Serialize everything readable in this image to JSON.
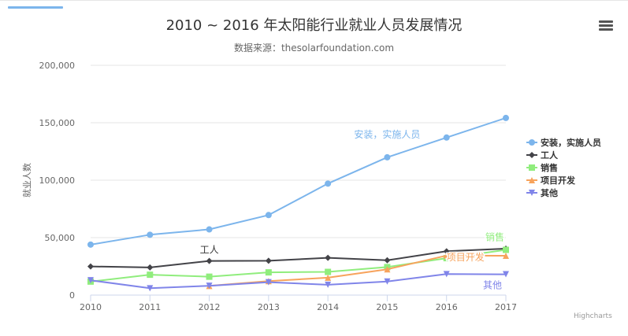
{
  "header": {
    "title": "2010 ~ 2016 年太阳能行业就业人员发展情况",
    "subtitle": "数据来源：thesolarfoundation.com",
    "credits": "Highcharts"
  },
  "chart_data": {
    "type": "line",
    "title": "2010 ~ 2016 年太阳能行业就业人员发展情况",
    "subtitle": "数据来源：thesolarfoundation.com",
    "xlabel": "",
    "ylabel": "就业人数",
    "x": [
      2010,
      2011,
      2012,
      2013,
      2014,
      2015,
      2016,
      2017
    ],
    "ylim": [
      0,
      200000
    ],
    "yticks": [
      0,
      50000,
      100000,
      150000,
      200000
    ],
    "ytick_labels": [
      "0",
      "50,000",
      "100,000",
      "150,000",
      "200,000"
    ],
    "legend_position": "right",
    "series": [
      {
        "name": "安装，实施人员",
        "color": "#7cb5ec",
        "marker": "circle",
        "values": [
          43934,
          52503,
          57177,
          69658,
          97031,
          119931,
          137133,
          154175
        ]
      },
      {
        "name": "工人",
        "color": "#434348",
        "marker": "diamond",
        "values": [
          24916,
          24064,
          29742,
          29851,
          32490,
          30282,
          38121,
          40434
        ]
      },
      {
        "name": "销售",
        "color": "#90ed7d",
        "marker": "square",
        "values": [
          11744,
          17722,
          16005,
          19771,
          20185,
          24377,
          32147,
          39387
        ]
      },
      {
        "name": "项目开发",
        "color": "#f7a35c",
        "marker": "triangle",
        "values": [
          null,
          null,
          7988,
          12169,
          15112,
          22452,
          34400,
          34227
        ]
      },
      {
        "name": "其他",
        "color": "#8085e9",
        "marker": "triangle-down",
        "values": [
          12908,
          5948,
          8105,
          11248,
          8989,
          11816,
          18274,
          18111
        ]
      }
    ],
    "annotations": [
      "安装，实施人员",
      "工人",
      "销售",
      "项目开发",
      "其他"
    ]
  }
}
